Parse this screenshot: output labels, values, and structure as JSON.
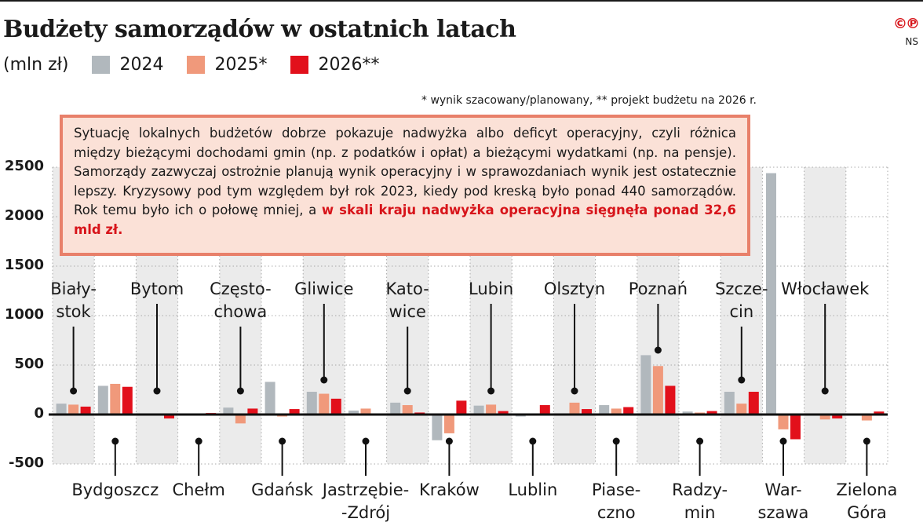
{
  "title": "Budżety samorządów w ostatnich latach",
  "copyright": {
    "symbols": "©℗",
    "author": "NS"
  },
  "legend": {
    "unit": "(mln zł)",
    "items": [
      {
        "label": "2024",
        "color": "#b1b8bd"
      },
      {
        "label": "2025*",
        "color": "#f0997b"
      },
      {
        "label": "2026**",
        "color": "#e2101b"
      }
    ]
  },
  "footnote": "* wynik szacowany/planowany, ** projekt budżetu na 2026 r.",
  "infobox": {
    "text": "Sytuację lokalnych budżetów dobrze pokazuje nadwyżka albo deficyt operacyjny, czyli różnica między bieżącymi dochodami gmin (np. z podatków i opłat) a bieżącymi wydatkami (np. na pensje). Samorządy zazwyczaj ostrożnie planują wynik operacyjny i w sprawozdaniach wynik jest ostatecznie lepszy. Kryzysowy pod tym względem był rok 2023, kiedy pod kreską było ponad 440 samorządów. Rok temu było ich o połowę mniej, a ",
    "highlight": "w skali kraju nadwyżka operacyjna sięgnęła ponad 32,6 mld zł."
  },
  "chart_data": {
    "type": "bar",
    "title": "Budżety samorządów w ostatnich latach",
    "ylabel": "mln zł",
    "xlabel": "",
    "ylim": [
      -500,
      2500
    ],
    "yticks": [
      2500,
      2000,
      1500,
      1000,
      500,
      0,
      -500
    ],
    "grid": true,
    "legend_position": "top-left",
    "categories": [
      "Białystok",
      "Bydgoszcz",
      "Bytom",
      "Chełm",
      "Częstochowa",
      "Gdańsk",
      "Gliwice",
      "Jastrzębie-Zdrój",
      "Katowice",
      "Kraków",
      "Lubin",
      "Lublin",
      "Olsztyn",
      "Piaseczno",
      "Poznań",
      "Radzymin",
      "Szczecin",
      "Warszawa",
      "Włocławek",
      "Zielona Góra"
    ],
    "category_labels": [
      "Biały-\nstok",
      "Bydgoszcz",
      "Bytom",
      "Chełm",
      "Często-\nchowa",
      "Gdańsk",
      "Gliwice",
      "Jastrzębie-\n-Zdrój",
      "Kato-\nwice",
      "Kraków",
      "Lubin",
      "Lublin",
      "Olsztyn",
      "Piase-\nczno",
      "Poznań",
      "Radzy-\nmin",
      "Szcze-\ncin",
      "War-\nszawa",
      "Włocławek",
      "Zielona\nGóra"
    ],
    "series": [
      {
        "name": "2024",
        "color": "#b1b8bd",
        "values": [
          110,
          290,
          0,
          5,
          70,
          330,
          230,
          40,
          120,
          -260,
          90,
          -20,
          0,
          95,
          600,
          30,
          230,
          2440,
          0,
          0
        ]
      },
      {
        "name": "2025*",
        "color": "#f0997b",
        "values": [
          100,
          310,
          0,
          0,
          -90,
          -20,
          210,
          60,
          95,
          -190,
          100,
          0,
          120,
          60,
          490,
          20,
          110,
          -150,
          -50,
          -60
        ]
      },
      {
        "name": "2026**",
        "color": "#e2101b",
        "values": [
          80,
          280,
          -40,
          15,
          60,
          55,
          160,
          0,
          20,
          140,
          35,
          95,
          55,
          75,
          290,
          35,
          230,
          -250,
          -40,
          30
        ]
      }
    ]
  }
}
